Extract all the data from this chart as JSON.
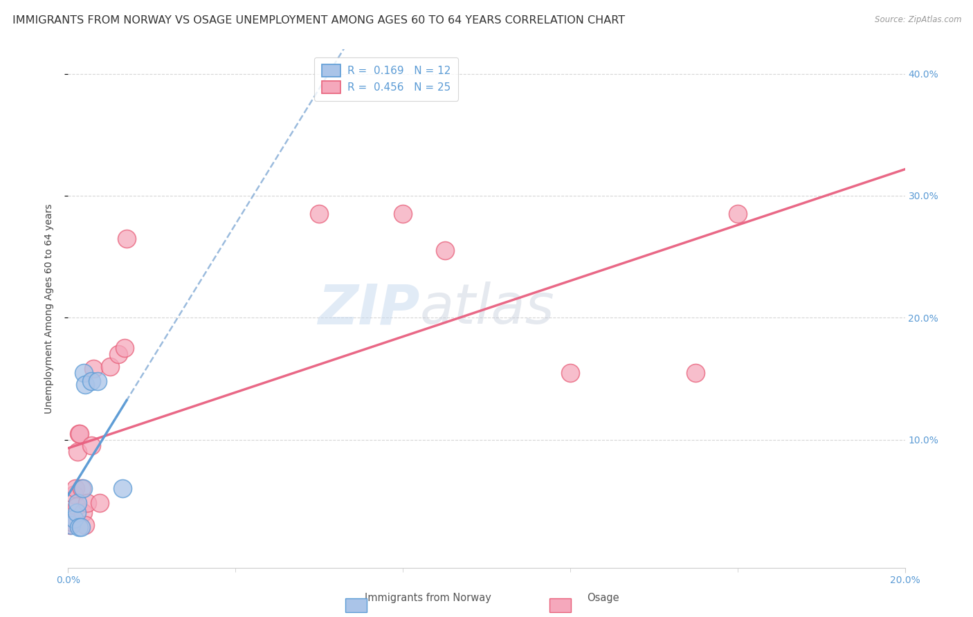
{
  "title": "IMMIGRANTS FROM NORWAY VS OSAGE UNEMPLOYMENT AMONG AGES 60 TO 64 YEARS CORRELATION CHART",
  "source": "Source: ZipAtlas.com",
  "ylabel": "Unemployment Among Ages 60 to 64 years",
  "xlim": [
    0.0,
    0.2
  ],
  "ylim": [
    -0.005,
    0.42
  ],
  "xtick_positions": [
    0.0,
    0.2
  ],
  "xtick_labels": [
    "0.0%",
    "20.0%"
  ],
  "yticks_right": [
    0.1,
    0.2,
    0.3,
    0.4
  ],
  "ytick_labels_right": [
    "10.0%",
    "20.0%",
    "30.0%",
    "40.0%"
  ],
  "background_color": "#ffffff",
  "grid_color": "#cccccc",
  "watermark_zip": "ZIP",
  "watermark_atlas": "atlas",
  "norway_color": "#aac4e8",
  "osage_color": "#f5a8bc",
  "norway_edge_color": "#5b9bd5",
  "osage_edge_color": "#e8607a",
  "norway_line_color": "#5b9bd5",
  "osage_line_color": "#e86080",
  "dashed_line_color": "#8ab0d8",
  "norway_R": 0.169,
  "norway_N": 12,
  "osage_R": 0.456,
  "osage_N": 25,
  "norway_scatter_x": [
    0.0008,
    0.0015,
    0.002,
    0.0022,
    0.0025,
    0.003,
    0.0035,
    0.0038,
    0.004,
    0.0055,
    0.007,
    0.013
  ],
  "norway_scatter_y": [
    0.03,
    0.035,
    0.04,
    0.048,
    0.028,
    0.028,
    0.06,
    0.155,
    0.145,
    0.148,
    0.148,
    0.06
  ],
  "osage_scatter_x": [
    0.0005,
    0.001,
    0.0015,
    0.0018,
    0.002,
    0.0022,
    0.0025,
    0.0028,
    0.0032,
    0.0035,
    0.004,
    0.0045,
    0.0055,
    0.006,
    0.0075,
    0.01,
    0.012,
    0.0135,
    0.014,
    0.06,
    0.08,
    0.09,
    0.12,
    0.15,
    0.16
  ],
  "osage_scatter_y": [
    0.03,
    0.032,
    0.055,
    0.06,
    0.045,
    0.09,
    0.105,
    0.105,
    0.06,
    0.04,
    0.03,
    0.048,
    0.095,
    0.158,
    0.048,
    0.16,
    0.17,
    0.175,
    0.265,
    0.285,
    0.285,
    0.255,
    0.155,
    0.155,
    0.285
  ],
  "title_fontsize": 11.5,
  "axis_label_fontsize": 10,
  "tick_fontsize": 10,
  "legend_fontsize": 11
}
